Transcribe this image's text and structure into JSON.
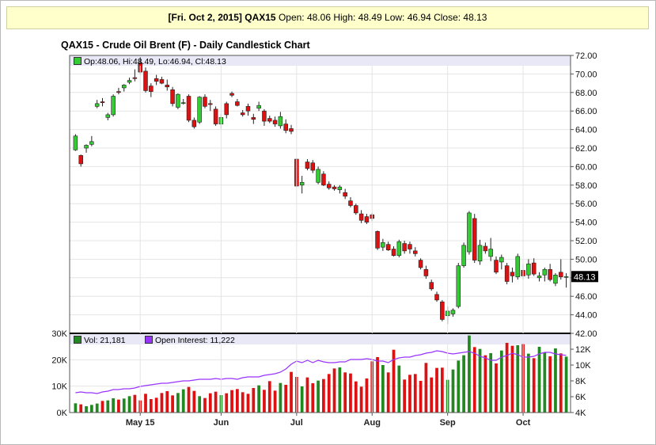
{
  "quote": {
    "date": "[Fri. Oct 2, 2015]",
    "symbol": "QAX15",
    "text": "Open: 48.06 High: 48.49 Low: 46.94 Close: 48.13"
  },
  "colors": {
    "up": "#33cc33",
    "down": "#dd1111",
    "oi": "#9933ff",
    "vol_up": "#228822",
    "vol_down": "#dd1111"
  },
  "chart_data": {
    "type": "candlestick",
    "title": "QAX15 - Crude Oil Brent (F) - Daily Candlestick Chart",
    "price_legend": "Op:48.06, Hi:48.49, Lo:46.94, Cl:48.13",
    "last_price_label": "48.13",
    "price_axis": {
      "ylim": [
        42,
        72
      ],
      "ticks": [
        "42.00",
        "44.00",
        "46.00",
        "48.00",
        "50.00",
        "52.00",
        "54.00",
        "56.00",
        "58.00",
        "60.00",
        "62.00",
        "64.00",
        "66.00",
        "68.00",
        "70.00",
        "72.00"
      ]
    },
    "volume_legend": "Vol: 21,181",
    "oi_legend": "Open Interest: 11,222",
    "volume_axis": {
      "ylim": [
        0,
        30000
      ],
      "ticks": [
        "0K",
        "10K",
        "20K",
        "30K"
      ]
    },
    "oi_axis": {
      "ylim": [
        4000,
        14000
      ],
      "ticks": [
        "4K",
        "6K",
        "8K",
        "10K",
        "12K"
      ]
    },
    "x_labels": [
      "May 15",
      "Jun",
      "Jul",
      "Aug",
      "Sep",
      "Oct"
    ],
    "x_label_index": [
      12,
      27,
      41,
      55,
      69,
      83
    ],
    "candles": [
      [
        61.8,
        63.5,
        61.7,
        63.3
      ],
      [
        61.2,
        61.3,
        60.0,
        60.3
      ],
      [
        62.0,
        62.4,
        61.5,
        62.3
      ],
      [
        62.4,
        63.3,
        62.2,
        62.7
      ],
      [
        66.5,
        67.2,
        66.3,
        66.8
      ],
      [
        67.0,
        67.4,
        66.5,
        66.9
      ],
      [
        65.3,
        65.8,
        65.0,
        65.6
      ],
      [
        65.6,
        67.8,
        65.4,
        67.6
      ],
      [
        68.1,
        68.5,
        67.8,
        68.0
      ],
      [
        68.5,
        68.9,
        68.1,
        68.8
      ],
      [
        69.1,
        69.6,
        68.9,
        69.3
      ],
      [
        69.6,
        70.5,
        69.2,
        69.5
      ],
      [
        71.2,
        71.8,
        70.0,
        70.2
      ],
      [
        70.3,
        70.7,
        68.0,
        68.2
      ],
      [
        68.7,
        69.0,
        67.5,
        68.1
      ],
      [
        69.5,
        69.9,
        68.8,
        69.2
      ],
      [
        69.4,
        69.7,
        68.9,
        69.0
      ],
      [
        68.8,
        69.4,
        68.2,
        68.6
      ],
      [
        68.3,
        68.6,
        66.5,
        66.8
      ],
      [
        66.4,
        67.9,
        66.2,
        67.8
      ],
      [
        66.9,
        67.3,
        66.7,
        66.9
      ],
      [
        67.6,
        67.8,
        64.8,
        65.0
      ],
      [
        65.0,
        65.3,
        64.1,
        64.3
      ],
      [
        64.8,
        67.6,
        64.6,
        67.5
      ],
      [
        67.5,
        67.8,
        66.3,
        66.5
      ],
      [
        66.8,
        67.2,
        66.0,
        66.7
      ],
      [
        66.2,
        66.5,
        64.4,
        64.6
      ],
      [
        64.6,
        65.7,
        64.1,
        65.3
      ],
      [
        66.8,
        67.0,
        65.2,
        65.6
      ],
      [
        67.9,
        68.1,
        67.5,
        67.7
      ],
      [
        67.0,
        67.3,
        66.5,
        66.6
      ],
      [
        65.8,
        66.1,
        65.4,
        65.6
      ],
      [
        66.5,
        66.8,
        65.5,
        66.0
      ],
      [
        65.3,
        65.7,
        64.6,
        65.1
      ],
      [
        66.3,
        67.0,
        66.0,
        66.6
      ],
      [
        66.0,
        66.2,
        64.4,
        64.9
      ],
      [
        65.2,
        65.5,
        64.7,
        64.9
      ],
      [
        65.0,
        65.4,
        64.3,
        64.6
      ],
      [
        64.4,
        65.9,
        64.1,
        65.4
      ],
      [
        64.6,
        65.1,
        63.6,
        63.9
      ],
      [
        64.1,
        64.5,
        63.5,
        63.8
      ],
      [
        60.8,
        60.9,
        57.8,
        57.9
      ],
      [
        58.0,
        59.0,
        57.1,
        58.3
      ],
      [
        60.5,
        60.8,
        59.6,
        59.8
      ],
      [
        60.4,
        60.7,
        59.3,
        59.6
      ],
      [
        58.3,
        60.0,
        58.1,
        59.7
      ],
      [
        59.2,
        59.5,
        57.9,
        58.0
      ],
      [
        58.1,
        58.4,
        57.5,
        57.7
      ],
      [
        57.8,
        58.0,
        57.4,
        57.6
      ],
      [
        57.5,
        58.0,
        57.1,
        57.8
      ],
      [
        57.2,
        57.6,
        56.5,
        56.8
      ],
      [
        56.3,
        56.7,
        55.6,
        55.8
      ],
      [
        55.8,
        56.0,
        54.8,
        55.0
      ],
      [
        54.9,
        55.3,
        53.9,
        54.2
      ],
      [
        54.6,
        54.9,
        53.8,
        54.0
      ],
      [
        54.8,
        55.0,
        54.1,
        54.4
      ],
      [
        53.0,
        53.1,
        51.0,
        51.2
      ],
      [
        51.3,
        52.2,
        50.9,
        51.8
      ],
      [
        51.6,
        51.9,
        50.9,
        51.0
      ],
      [
        51.1,
        51.4,
        50.3,
        50.4
      ],
      [
        50.4,
        52.1,
        50.2,
        51.9
      ],
      [
        51.7,
        52.0,
        50.6,
        50.9
      ],
      [
        51.6,
        51.9,
        50.6,
        51.1
      ],
      [
        50.9,
        51.3,
        50.3,
        50.6
      ],
      [
        49.9,
        50.1,
        48.9,
        49.1
      ],
      [
        48.9,
        49.3,
        47.9,
        48.2
      ],
      [
        47.5,
        47.8,
        46.6,
        46.8
      ],
      [
        46.2,
        46.5,
        45.4,
        45.6
      ],
      [
        45.4,
        45.6,
        43.3,
        43.5
      ],
      [
        43.9,
        44.9,
        43.0,
        44.4
      ],
      [
        44.1,
        44.7,
        43.8,
        44.5
      ],
      [
        44.9,
        49.6,
        44.7,
        49.3
      ],
      [
        49.3,
        51.8,
        49.1,
        51.5
      ],
      [
        50.8,
        55.2,
        50.5,
        55.0
      ],
      [
        54.4,
        54.9,
        49.6,
        49.9
      ],
      [
        49.8,
        52.1,
        49.4,
        51.5
      ],
      [
        51.4,
        51.8,
        50.6,
        50.9
      ],
      [
        50.3,
        52.3,
        49.8,
        51.1
      ],
      [
        49.9,
        50.3,
        48.4,
        48.6
      ],
      [
        49.7,
        50.5,
        48.9,
        50.2
      ],
      [
        49.3,
        49.6,
        47.3,
        47.6
      ],
      [
        48.6,
        49.1,
        47.5,
        48.2
      ],
      [
        48.1,
        50.6,
        47.8,
        50.3
      ],
      [
        48.8,
        49.5,
        47.8,
        48.2
      ],
      [
        48.3,
        50.0,
        47.9,
        49.5
      ],
      [
        49.6,
        50.1,
        48.2,
        48.4
      ],
      [
        48.0,
        48.6,
        47.6,
        48.2
      ],
      [
        48.3,
        49.1,
        47.6,
        48.9
      ],
      [
        48.9,
        49.5,
        47.6,
        47.8
      ],
      [
        47.4,
        48.5,
        47.1,
        48.3
      ],
      [
        48.6,
        50.0,
        47.8,
        48.1
      ],
      [
        48.06,
        48.49,
        46.94,
        48.13
      ]
    ],
    "volume": [
      3500,
      3100,
      2400,
      2900,
      3400,
      4400,
      4600,
      5400,
      4900,
      5300,
      6200,
      6700,
      4600,
      7100,
      5100,
      5600,
      7400,
      8100,
      6500,
      7400,
      8800,
      9700,
      8200,
      6200,
      5500,
      7300,
      7900,
      6600,
      7300,
      8500,
      8900,
      7700,
      7100,
      9300,
      10300,
      8600,
      11900,
      8300,
      11200,
      10500,
      15400,
      13500,
      9900,
      13300,
      11100,
      12100,
      12700,
      14600,
      16700,
      17100,
      15200,
      14800,
      11800,
      9800,
      12900,
      19400,
      21000,
      18000,
      15200,
      23800,
      17800,
      12500,
      14300,
      14600,
      12000,
      18800,
      13300,
      16900,
      17000,
      12400,
      16300,
      19700,
      21700,
      29200,
      24800,
      24100,
      21700,
      22500,
      18600,
      23500,
      26400,
      25300,
      25500,
      25900,
      22300,
      20600,
      24900,
      22700,
      21300,
      24300,
      22400,
      21181
    ],
    "open_interest": [
      6500,
      6600,
      6500,
      6500,
      6400,
      6600,
      6700,
      6900,
      6900,
      7000,
      7000,
      7100,
      7300,
      7400,
      7500,
      7600,
      7700,
      7700,
      7800,
      7900,
      8000,
      8000,
      8100,
      8200,
      8200,
      8200,
      8300,
      8200,
      8300,
      8300,
      8200,
      8400,
      8500,
      8500,
      8500,
      8700,
      8800,
      8900,
      9100,
      9500,
      10100,
      10500,
      10300,
      10600,
      10300,
      10600,
      10400,
      10300,
      10300,
      10400,
      10400,
      10700,
      10700,
      10700,
      10800,
      10700,
      10500,
      10500,
      10300,
      10700,
      10900,
      11000,
      11000,
      11200,
      11300,
      11500,
      11600,
      11800,
      11700,
      11500,
      11400,
      11500,
      11600,
      11700,
      11500,
      11100,
      10900,
      10600,
      10600,
      11000,
      11200,
      11500,
      11300,
      11000,
      11000,
      11100,
      11400,
      11600,
      11600,
      11400,
      11300,
      11222
    ]
  }
}
